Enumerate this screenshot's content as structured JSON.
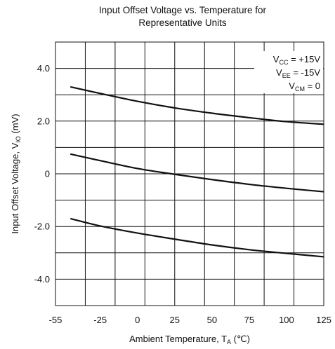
{
  "chart_data": {
    "type": "line",
    "title_line1": "Input Offset Voltage vs. Temperature for",
    "title_line2": "Representative Units",
    "xlabel": {
      "main": "Ambient Temperature, T",
      "sub": "A",
      "unit": " (℃)"
    },
    "ylabel": {
      "main": "Input Offset Voltage, V",
      "sub": "IO",
      "unit": " (mV)"
    },
    "xlim": [
      -55,
      125
    ],
    "ylim": [
      -5.0,
      5.0
    ],
    "x_ticks": [
      -55,
      -25,
      0,
      25,
      50,
      75,
      100,
      125
    ],
    "x_tick_labels": [
      "-55",
      "-25",
      "0",
      "25",
      "50",
      "75",
      "100",
      "125"
    ],
    "y_ticks": [
      -4,
      -2,
      0,
      2,
      4
    ],
    "y_tick_labels": [
      "-4.0",
      "-2.0",
      "0",
      "2.0",
      "4.0"
    ],
    "x_grid": [
      -55,
      -35,
      -15,
      5,
      25,
      45,
      65,
      85,
      105,
      125
    ],
    "y_grid": [
      -5,
      -4,
      -3,
      -2,
      -1,
      0,
      1,
      2,
      3,
      4,
      5
    ],
    "grid": true,
    "legend": "top-right",
    "conditions": [
      {
        "main": "V",
        "sub": "CC",
        "rest": " = +15V"
      },
      {
        "main": "V",
        "sub": "EE",
        "rest": " = -15V"
      },
      {
        "main": "V",
        "sub": "CM",
        "rest": " = 0"
      }
    ],
    "series": [
      {
        "x": [
          -45,
          -25,
          0,
          25,
          50,
          75,
          100,
          125
        ],
        "values": [
          3.3,
          3.05,
          2.75,
          2.5,
          2.3,
          2.13,
          1.98,
          1.88
        ]
      },
      {
        "x": [
          -45,
          -25,
          0,
          25,
          50,
          75,
          100,
          125
        ],
        "values": [
          0.75,
          0.5,
          0.2,
          -0.02,
          -0.22,
          -0.4,
          -0.55,
          -0.68
        ]
      },
      {
        "x": [
          -45,
          -25,
          0,
          25,
          50,
          75,
          100,
          125
        ],
        "values": [
          -1.7,
          -1.98,
          -2.25,
          -2.48,
          -2.7,
          -2.88,
          -3.02,
          -3.15
        ]
      }
    ],
    "colors": {
      "line": "#111111",
      "grid": "#111111"
    }
  }
}
